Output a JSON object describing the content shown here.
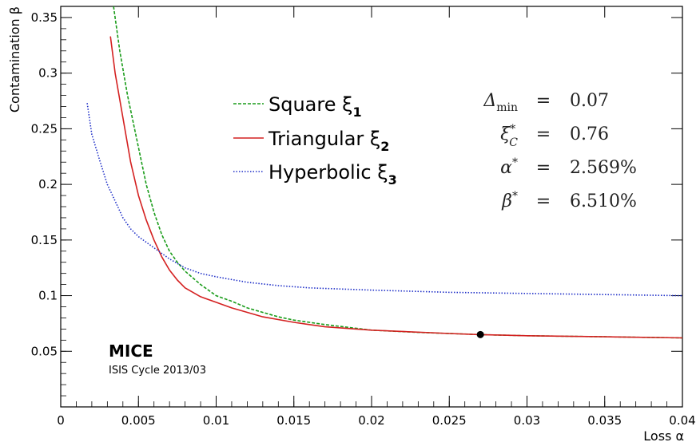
{
  "chart_data": {
    "type": "line",
    "xlabel": "Loss α",
    "ylabel": "Contamination β",
    "xlim": [
      0,
      0.04
    ],
    "ylim": [
      0.0,
      0.36
    ],
    "x_ticks": [
      "0",
      "0.005",
      "0.01",
      "0.015",
      "0.02",
      "0.025",
      "0.03",
      "0.035",
      "0.04"
    ],
    "x_tick_values": [
      0,
      0.005,
      0.01,
      0.015,
      0.02,
      0.025,
      0.03,
      0.035,
      0.04
    ],
    "y_ticks": [
      "0.05",
      "0.1",
      "0.15",
      "0.2",
      "0.25",
      "0.3",
      "0.35"
    ],
    "y_tick_values": [
      0.05,
      0.1,
      0.15,
      0.2,
      0.25,
      0.3,
      0.35
    ],
    "legend_position": "top-center",
    "series": [
      {
        "name": "Square ξ1",
        "legend_main": "Square ξ",
        "legend_sub": "1",
        "color": "#1a9c1a",
        "style": "dashed",
        "x": [
          0.0034,
          0.0038,
          0.0043,
          0.0049,
          0.0055,
          0.006,
          0.0065,
          0.007,
          0.0075,
          0.008,
          0.009,
          0.01,
          0.011,
          0.012,
          0.013,
          0.014,
          0.015,
          0.017,
          0.02,
          0.023,
          0.025,
          0.027,
          0.03,
          0.035,
          0.04
        ],
        "y": [
          0.36,
          0.32,
          0.28,
          0.24,
          0.2,
          0.175,
          0.155,
          0.14,
          0.13,
          0.122,
          0.11,
          0.1,
          0.095,
          0.089,
          0.085,
          0.081,
          0.078,
          0.074,
          0.069,
          0.067,
          0.066,
          0.065,
          0.064,
          0.063,
          0.062
        ]
      },
      {
        "name": "Triangular ξ2",
        "legend_main": "Triangular ξ",
        "legend_sub": "2",
        "color": "#d42020",
        "style": "solid",
        "x": [
          0.0032,
          0.0035,
          0.004,
          0.0045,
          0.005,
          0.0055,
          0.006,
          0.0065,
          0.007,
          0.0075,
          0.008,
          0.009,
          0.01,
          0.011,
          0.012,
          0.013,
          0.015,
          0.017,
          0.02,
          0.025,
          0.027,
          0.03,
          0.035,
          0.04
        ],
        "y": [
          0.333,
          0.3,
          0.26,
          0.22,
          0.19,
          0.168,
          0.15,
          0.135,
          0.123,
          0.114,
          0.107,
          0.099,
          0.094,
          0.089,
          0.085,
          0.081,
          0.076,
          0.072,
          0.069,
          0.066,
          0.065,
          0.064,
          0.063,
          0.062
        ]
      },
      {
        "name": "Hyperbolic ξ3",
        "legend_main": "Hyperbolic ξ",
        "legend_sub": "3",
        "color": "#2030c8",
        "style": "dotted",
        "x": [
          0.0017,
          0.002,
          0.0025,
          0.003,
          0.0035,
          0.004,
          0.0045,
          0.005,
          0.0055,
          0.006,
          0.007,
          0.008,
          0.009,
          0.01,
          0.012,
          0.014,
          0.016,
          0.018,
          0.02,
          0.025,
          0.03,
          0.035,
          0.04
        ],
        "y": [
          0.273,
          0.245,
          0.222,
          0.2,
          0.185,
          0.17,
          0.16,
          0.153,
          0.148,
          0.143,
          0.133,
          0.125,
          0.12,
          0.117,
          0.112,
          0.109,
          0.107,
          0.106,
          0.105,
          0.103,
          0.102,
          0.101,
          0.1
        ]
      }
    ],
    "marker": {
      "x": 0.027,
      "y": 0.065,
      "color": "#000000"
    },
    "stats": [
      {
        "label": "Δ_min",
        "label_main": "Δ",
        "label_sub": "min",
        "label_sup": "",
        "eq": "=",
        "value": "0.07"
      },
      {
        "label": "ξ*_C",
        "label_main": "ξ",
        "label_sub": "C",
        "label_sup": "*",
        "eq": "=",
        "value": "0.76"
      },
      {
        "label": "α*",
        "label_main": "α",
        "label_sub": "",
        "label_sup": "*",
        "eq": "=",
        "value": "2.569%"
      },
      {
        "label": "β*",
        "label_main": "β",
        "label_sub": "",
        "label_sup": "*",
        "eq": "=",
        "value": "6.510%"
      }
    ],
    "annotation": {
      "title": "MICE",
      "subtitle": "ISIS Cycle 2013/03"
    }
  }
}
